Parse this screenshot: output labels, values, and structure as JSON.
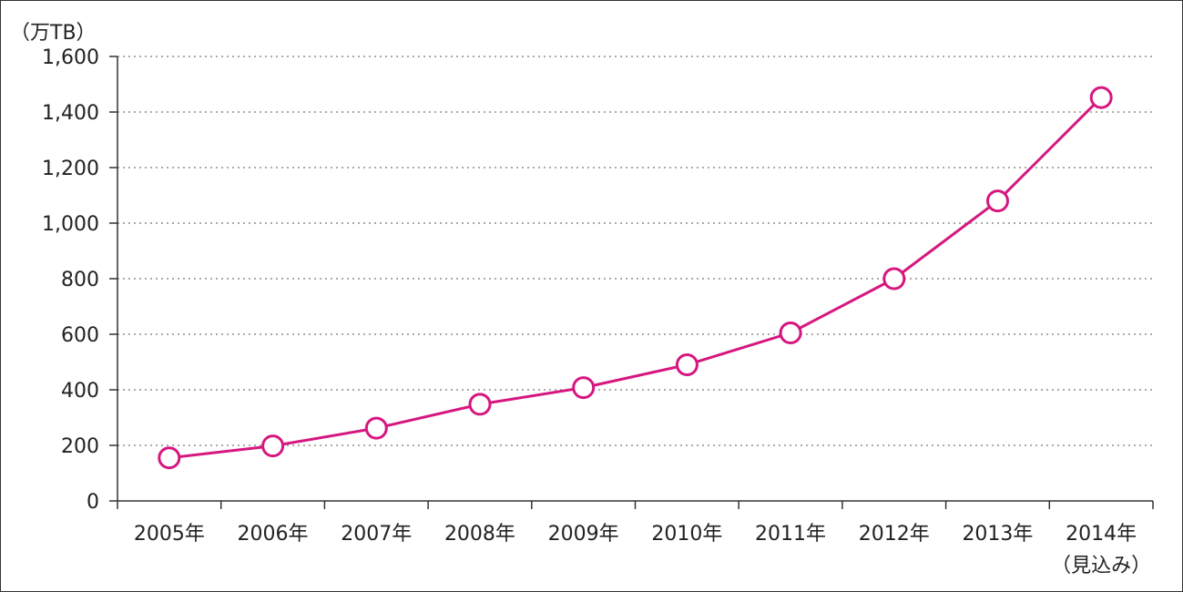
{
  "chart_data": {
    "type": "line",
    "title": "",
    "xlabel": "",
    "ylabel": "（万TB）",
    "ylim": [
      0,
      1600
    ],
    "yticks": [
      "0",
      "200",
      "400",
      "600",
      "800",
      "1,000",
      "1,200",
      "1,400",
      "1,600"
    ],
    "grid": true,
    "categories": [
      "2005年",
      "2006年",
      "2007年",
      "2008年",
      "2009年",
      "2010年",
      "2011年",
      "2012年",
      "2013年",
      "2014年"
    ],
    "category_notes": [
      "",
      "",
      "",
      "",
      "",
      "",
      "",
      "",
      "",
      "（見込み）"
    ],
    "series": [
      {
        "values": [
          155,
          198,
          262,
          348,
          408,
          490,
          605,
          800,
          1080,
          1452
        ],
        "color": "#d6177f",
        "marker": "open-circle"
      }
    ]
  }
}
